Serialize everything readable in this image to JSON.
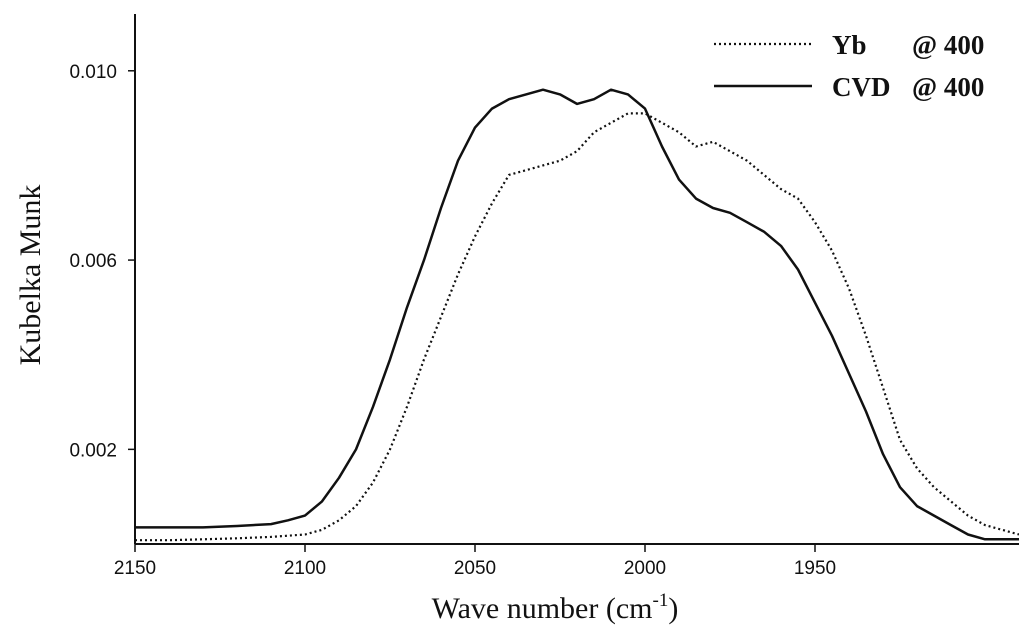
{
  "chart_data": {
    "type": "line",
    "xlabel": "Wave number (cm",
    "xlabel_superscript": "-1",
    "xlabel_close": ")",
    "ylabel": "Kubelka Munk",
    "x_reversed": true,
    "xlim": [
      2150,
      1890
    ],
    "ylim": [
      0.0,
      0.0112
    ],
    "xticks": [
      2150,
      2100,
      2050,
      2000,
      1950
    ],
    "xtick_labels": [
      "2150",
      "2100",
      "2050",
      "2000",
      "1950"
    ],
    "yticks": [
      0.002,
      0.006,
      0.01
    ],
    "ytick_labels": [
      "0.002",
      "0.006",
      "0.010"
    ],
    "legend_position": "top-right",
    "line_color": "#111111",
    "series": [
      {
        "name": "Yb",
        "name_suffix": "@ 400",
        "style": "dotted",
        "x": [
          2150,
          2140,
          2130,
          2120,
          2110,
          2100,
          2095,
          2090,
          2085,
          2080,
          2075,
          2070,
          2065,
          2060,
          2055,
          2050,
          2045,
          2040,
          2035,
          2030,
          2025,
          2020,
          2015,
          2010,
          2005,
          2000,
          1995,
          1990,
          1985,
          1980,
          1975,
          1970,
          1965,
          1960,
          1955,
          1950,
          1945,
          1940,
          1935,
          1930,
          1925,
          1920,
          1915,
          1910,
          1905,
          1900,
          1895,
          1890
        ],
        "y": [
          8e-05,
          8e-05,
          0.0001,
          0.00012,
          0.00015,
          0.0002,
          0.0003,
          0.0005,
          0.0008,
          0.0013,
          0.002,
          0.0029,
          0.0039,
          0.0048,
          0.0057,
          0.0065,
          0.0072,
          0.0078,
          0.0079,
          0.008,
          0.0081,
          0.0083,
          0.0087,
          0.0089,
          0.0091,
          0.0091,
          0.0089,
          0.0087,
          0.0084,
          0.0085,
          0.0083,
          0.0081,
          0.0078,
          0.0075,
          0.0073,
          0.0068,
          0.0062,
          0.0054,
          0.0044,
          0.0033,
          0.0022,
          0.0016,
          0.0012,
          0.0009,
          0.0006,
          0.0004,
          0.0003,
          0.0002
        ]
      },
      {
        "name": "CVD",
        "name_suffix": "@ 400",
        "style": "solid",
        "x": [
          2150,
          2140,
          2130,
          2120,
          2110,
          2105,
          2100,
          2095,
          2090,
          2085,
          2080,
          2075,
          2070,
          2065,
          2060,
          2055,
          2050,
          2045,
          2040,
          2035,
          2030,
          2025,
          2020,
          2015,
          2010,
          2005,
          2000,
          1995,
          1990,
          1985,
          1980,
          1975,
          1970,
          1965,
          1960,
          1955,
          1950,
          1945,
          1940,
          1935,
          1930,
          1925,
          1920,
          1915,
          1910,
          1905,
          1900,
          1895,
          1890
        ],
        "y": [
          0.00035,
          0.00035,
          0.00035,
          0.00038,
          0.00042,
          0.0005,
          0.0006,
          0.0009,
          0.0014,
          0.002,
          0.0029,
          0.0039,
          0.005,
          0.006,
          0.0071,
          0.0081,
          0.0088,
          0.0092,
          0.0094,
          0.0095,
          0.0096,
          0.0095,
          0.0093,
          0.0094,
          0.0096,
          0.0095,
          0.0092,
          0.0084,
          0.0077,
          0.0073,
          0.0071,
          0.007,
          0.0068,
          0.0066,
          0.0063,
          0.0058,
          0.0051,
          0.0044,
          0.0036,
          0.0028,
          0.0019,
          0.0012,
          0.0008,
          0.0006,
          0.0004,
          0.0002,
          0.0001,
          0.0001,
          0.0001
        ]
      }
    ]
  }
}
